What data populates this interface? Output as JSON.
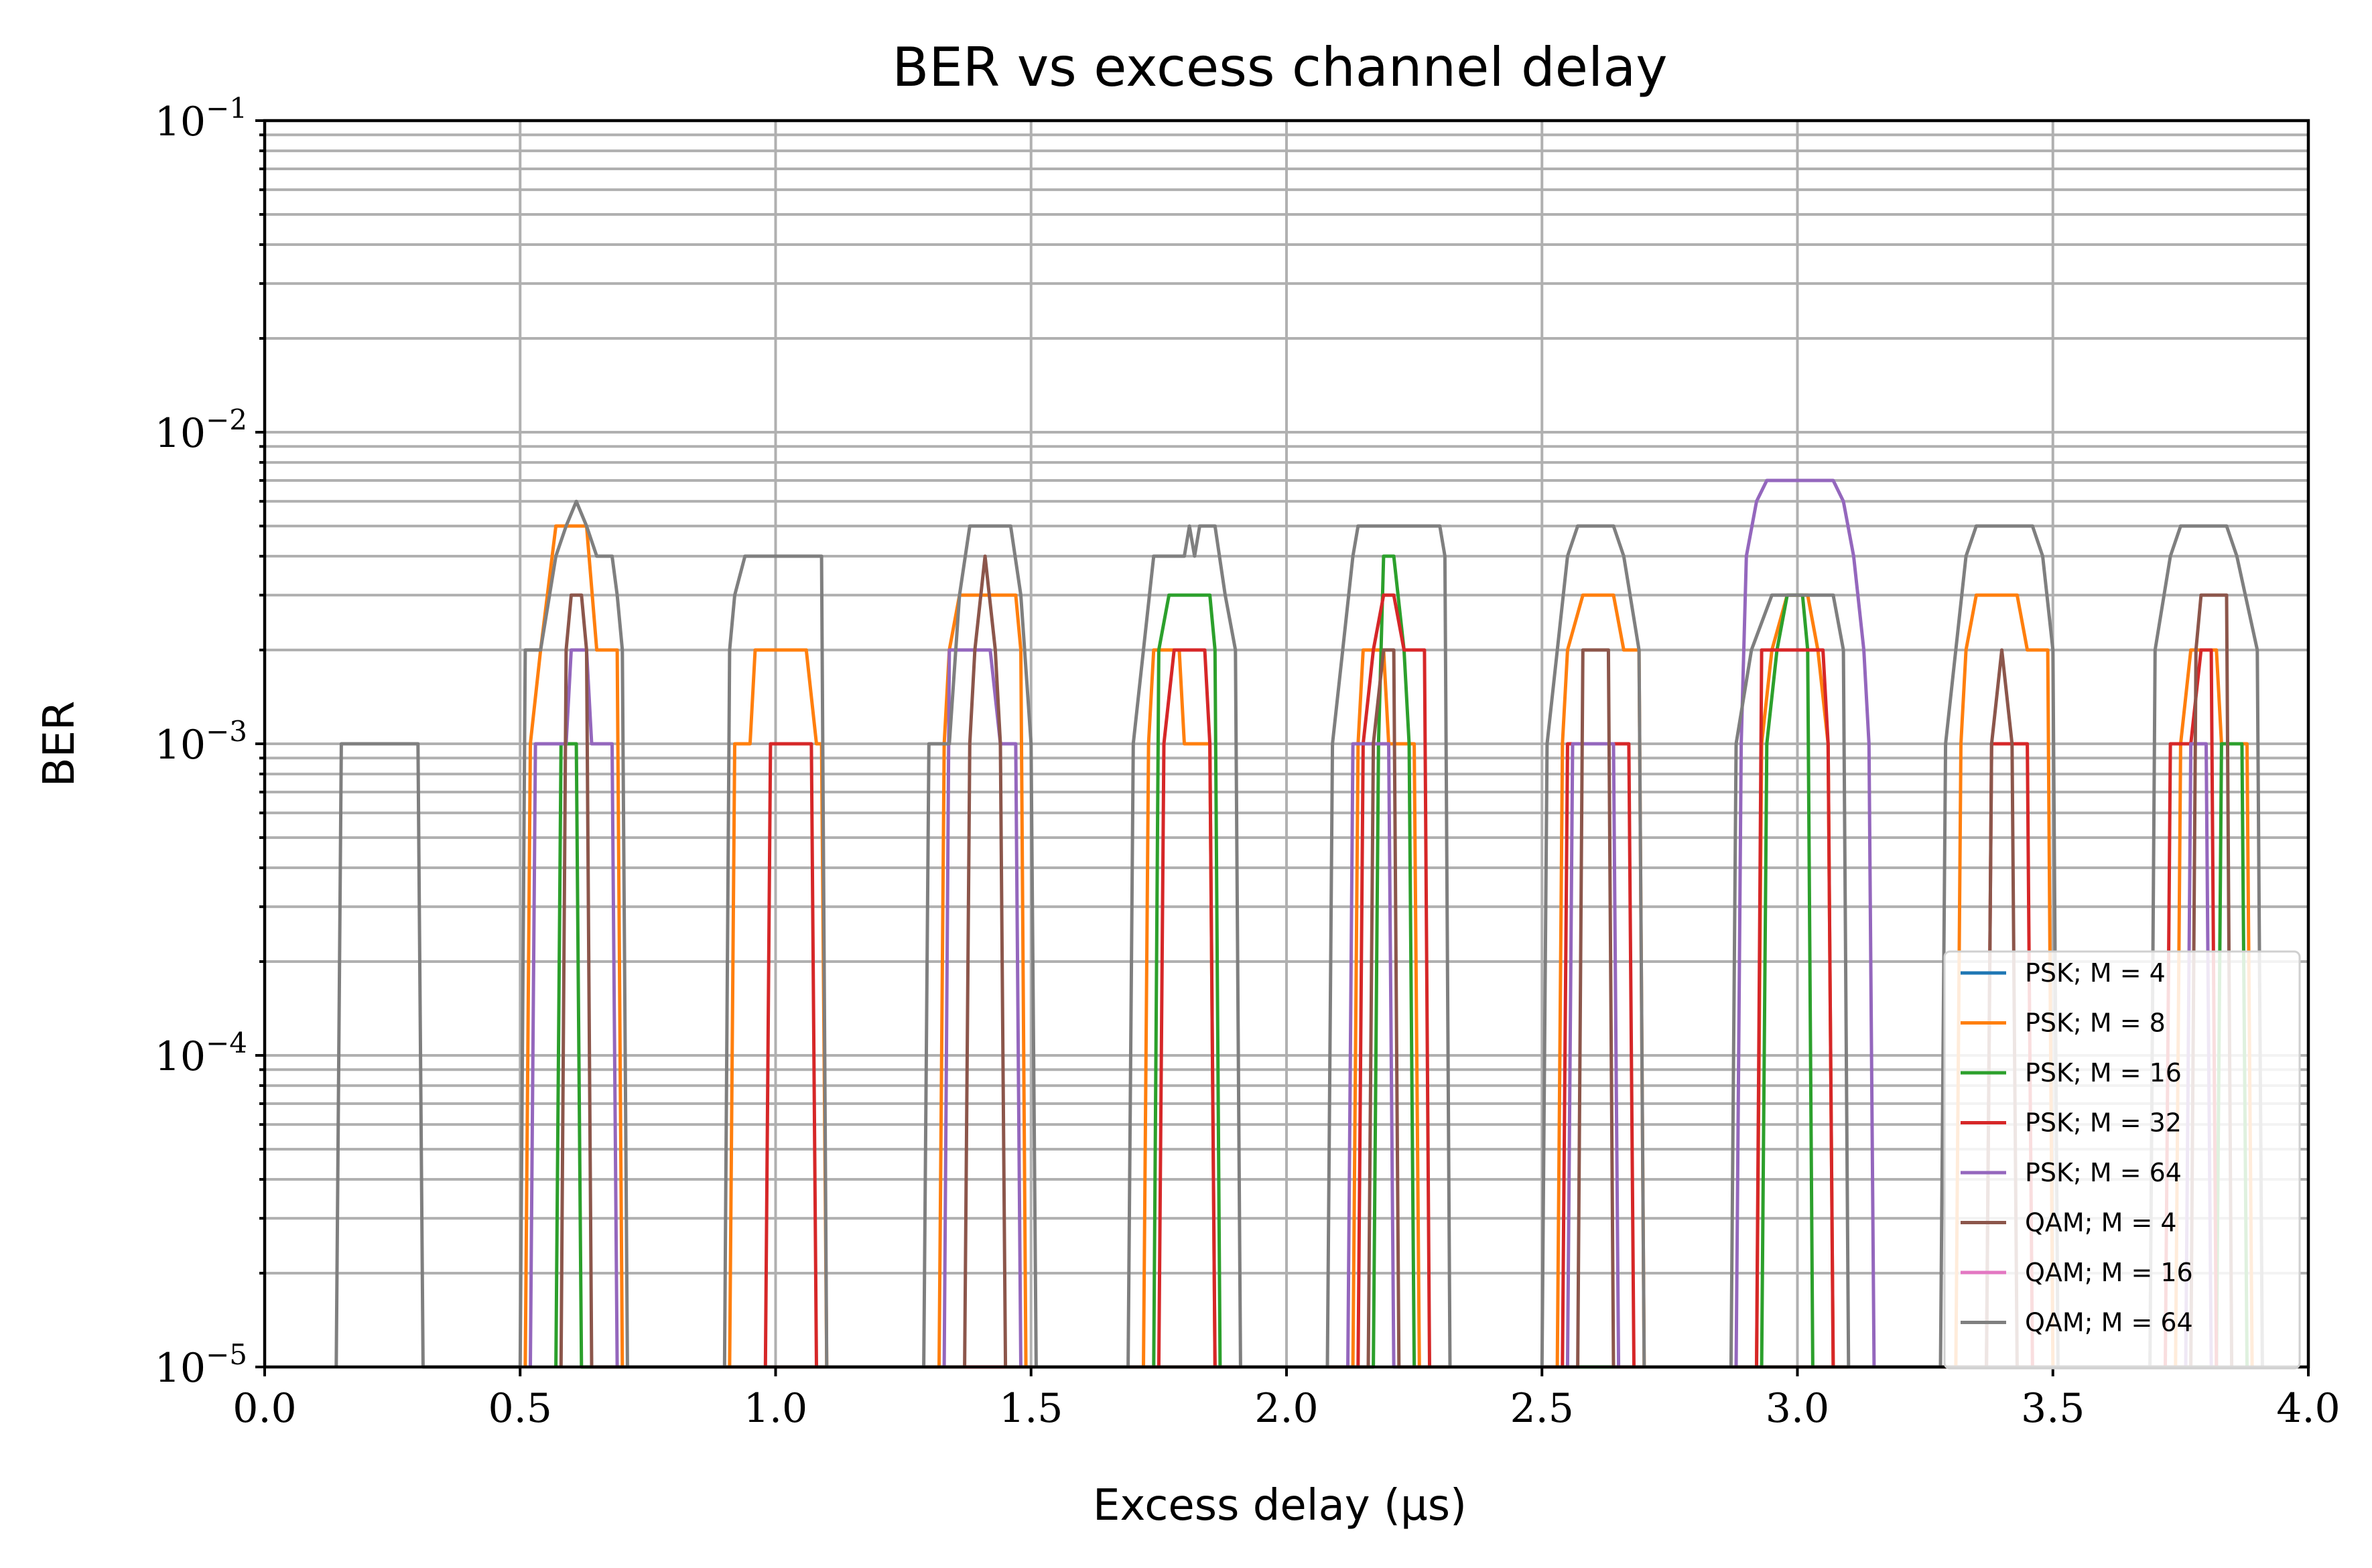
{
  "chart_data": {
    "type": "line",
    "title": "BER vs excess channel delay",
    "xlabel": "Excess delay (μs)",
    "ylabel": "BER",
    "xlim": [
      0,
      4
    ],
    "ylim": [
      1e-05,
      0.1
    ],
    "yscale": "log",
    "grid": "major and minor",
    "legend_position": "bottom-right",
    "x_ticks": [
      "0.0",
      "0.5",
      "1.0",
      "1.5",
      "2.0",
      "2.5",
      "3.0",
      "3.5",
      "4.0"
    ],
    "y_ticks": [
      {
        "base": "10",
        "exp": "−5",
        "value": 1e-05
      },
      {
        "base": "10",
        "exp": "−4",
        "value": 0.0001
      },
      {
        "base": "10",
        "exp": "−3",
        "value": 0.001
      },
      {
        "base": "10",
        "exp": "−2",
        "value": 0.01
      },
      {
        "base": "10",
        "exp": "−1",
        "value": 0.1
      }
    ],
    "series": [
      {
        "name": "PSK; M = 4",
        "color": "#1f77b4",
        "points": []
      },
      {
        "name": "PSK; M = 8",
        "color": "#ff7f0e",
        "points": [
          [
            0.51,
            1e-05
          ],
          [
            0.52,
            0.001
          ],
          [
            0.54,
            0.002
          ],
          [
            0.57,
            0.005
          ],
          [
            0.63,
            0.005
          ],
          [
            0.65,
            0.002
          ],
          [
            0.69,
            0.002
          ],
          [
            0.7,
            1e-05
          ],
          [
            0.91,
            1e-05
          ],
          [
            0.92,
            0.001
          ],
          [
            0.95,
            0.001
          ],
          [
            0.96,
            0.002
          ],
          [
            1.06,
            0.002
          ],
          [
            1.08,
            0.001
          ],
          [
            1.09,
            0.001
          ],
          [
            1.1,
            1e-05
          ],
          [
            1.32,
            1e-05
          ],
          [
            1.33,
            0.001
          ],
          [
            1.34,
            0.002
          ],
          [
            1.36,
            0.003
          ],
          [
            1.47,
            0.003
          ],
          [
            1.48,
            0.002
          ],
          [
            1.49,
            1e-05
          ],
          [
            1.72,
            1e-05
          ],
          [
            1.73,
            0.001
          ],
          [
            1.74,
            0.002
          ],
          [
            1.79,
            0.002
          ],
          [
            1.8,
            0.001
          ],
          [
            1.85,
            0.001
          ],
          [
            1.86,
            1e-05
          ],
          [
            2.13,
            1e-05
          ],
          [
            2.14,
            0.001
          ],
          [
            2.15,
            0.002
          ],
          [
            2.19,
            0.002
          ],
          [
            2.2,
            0.001
          ],
          [
            2.25,
            0.001
          ],
          [
            2.26,
            1e-05
          ],
          [
            2.53,
            1e-05
          ],
          [
            2.54,
            0.001
          ],
          [
            2.55,
            0.002
          ],
          [
            2.58,
            0.003
          ],
          [
            2.64,
            0.003
          ],
          [
            2.66,
            0.002
          ],
          [
            2.69,
            0.002
          ],
          [
            2.7,
            1e-05
          ],
          [
            2.92,
            1e-05
          ],
          [
            2.93,
            0.001
          ],
          [
            2.95,
            0.002
          ],
          [
            2.98,
            0.003
          ],
          [
            3.02,
            0.003
          ],
          [
            3.04,
            0.002
          ],
          [
            3.06,
            0.001
          ],
          [
            3.07,
            1e-05
          ],
          [
            3.31,
            1e-05
          ],
          [
            3.32,
            0.001
          ],
          [
            3.33,
            0.002
          ],
          [
            3.35,
            0.003
          ],
          [
            3.43,
            0.003
          ],
          [
            3.45,
            0.002
          ],
          [
            3.49,
            0.002
          ],
          [
            3.5,
            1e-05
          ],
          [
            3.74,
            1e-05
          ],
          [
            3.75,
            0.001
          ],
          [
            3.77,
            0.002
          ],
          [
            3.82,
            0.002
          ],
          [
            3.83,
            0.001
          ],
          [
            3.88,
            0.001
          ],
          [
            3.89,
            1e-05
          ]
        ]
      },
      {
        "name": "PSK; M = 16",
        "color": "#2ca02c",
        "points": [
          [
            0.57,
            1e-05
          ],
          [
            0.58,
            0.001
          ],
          [
            0.61,
            0.001
          ],
          [
            0.62,
            1e-05
          ],
          [
            1.74,
            1e-05
          ],
          [
            1.75,
            0.002
          ],
          [
            1.77,
            0.003
          ],
          [
            1.85,
            0.003
          ],
          [
            1.86,
            0.002
          ],
          [
            1.87,
            1e-05
          ],
          [
            2.17,
            1e-05
          ],
          [
            2.18,
            0.001
          ],
          [
            2.19,
            0.004
          ],
          [
            2.21,
            0.004
          ],
          [
            2.23,
            0.002
          ],
          [
            2.24,
            0.001
          ],
          [
            2.25,
            1e-05
          ],
          [
            2.93,
            1e-05
          ],
          [
            2.94,
            0.001
          ],
          [
            2.96,
            0.002
          ],
          [
            2.98,
            0.003
          ],
          [
            3.01,
            0.003
          ],
          [
            3.02,
            0.002
          ],
          [
            3.03,
            1e-05
          ],
          [
            3.82,
            1e-05
          ],
          [
            3.83,
            0.001
          ],
          [
            3.87,
            0.001
          ],
          [
            3.88,
            1e-05
          ]
        ]
      },
      {
        "name": "PSK; M = 32",
        "color": "#d62728",
        "points": [
          [
            0.98,
            1e-05
          ],
          [
            0.99,
            0.001
          ],
          [
            1.07,
            0.001
          ],
          [
            1.08,
            1e-05
          ],
          [
            1.75,
            1e-05
          ],
          [
            1.76,
            0.001
          ],
          [
            1.78,
            0.002
          ],
          [
            1.84,
            0.002
          ],
          [
            1.85,
            0.001
          ],
          [
            1.86,
            1e-05
          ],
          [
            2.14,
            1e-05
          ],
          [
            2.15,
            0.001
          ],
          [
            2.17,
            0.002
          ],
          [
            2.19,
            0.003
          ],
          [
            2.21,
            0.003
          ],
          [
            2.23,
            0.002
          ],
          [
            2.27,
            0.002
          ],
          [
            2.28,
            1e-05
          ],
          [
            2.54,
            1e-05
          ],
          [
            2.55,
            0.001
          ],
          [
            2.67,
            0.001
          ],
          [
            2.68,
            1e-05
          ],
          [
            2.92,
            1e-05
          ],
          [
            2.93,
            0.002
          ],
          [
            3.05,
            0.002
          ],
          [
            3.06,
            0.001
          ],
          [
            3.07,
            1e-05
          ],
          [
            3.37,
            1e-05
          ],
          [
            3.38,
            0.001
          ],
          [
            3.45,
            0.001
          ],
          [
            3.46,
            1e-05
          ],
          [
            3.72,
            1e-05
          ],
          [
            3.73,
            0.001
          ],
          [
            3.77,
            0.001
          ],
          [
            3.79,
            0.002
          ],
          [
            3.81,
            0.002
          ],
          [
            3.82,
            1e-05
          ]
        ]
      },
      {
        "name": "PSK; M = 64",
        "color": "#9467bd",
        "points": [
          [
            0.52,
            1e-05
          ],
          [
            0.53,
            0.001
          ],
          [
            0.59,
            0.001
          ],
          [
            0.6,
            0.002
          ],
          [
            0.63,
            0.002
          ],
          [
            0.64,
            0.001
          ],
          [
            0.68,
            0.001
          ],
          [
            0.69,
            1e-05
          ],
          [
            1.33,
            1e-05
          ],
          [
            1.34,
            0.002
          ],
          [
            1.37,
            0.002
          ],
          [
            1.42,
            0.002
          ],
          [
            1.44,
            0.001
          ],
          [
            1.47,
            0.001
          ],
          [
            1.48,
            1e-05
          ],
          [
            2.12,
            1e-05
          ],
          [
            2.13,
            0.001
          ],
          [
            2.2,
            0.001
          ],
          [
            2.21,
            1e-05
          ],
          [
            2.55,
            1e-05
          ],
          [
            2.56,
            0.001
          ],
          [
            2.64,
            0.001
          ],
          [
            2.65,
            1e-05
          ],
          [
            2.88,
            1e-05
          ],
          [
            2.89,
            0.001
          ],
          [
            2.9,
            0.004
          ],
          [
            2.92,
            0.006
          ],
          [
            2.94,
            0.007
          ],
          [
            3.07,
            0.007
          ],
          [
            3.09,
            0.006
          ],
          [
            3.11,
            0.004
          ],
          [
            3.13,
            0.002
          ],
          [
            3.14,
            0.001
          ],
          [
            3.15,
            1e-05
          ],
          [
            3.76,
            1e-05
          ],
          [
            3.77,
            0.001
          ],
          [
            3.8,
            0.001
          ],
          [
            3.81,
            1e-05
          ]
        ]
      },
      {
        "name": "QAM; M = 4",
        "color": "#8c564b",
        "points": [
          [
            0.58,
            1e-05
          ],
          [
            0.59,
            0.002
          ],
          [
            0.6,
            0.003
          ],
          [
            0.62,
            0.003
          ],
          [
            0.63,
            0.002
          ],
          [
            0.64,
            1e-05
          ],
          [
            1.37,
            1e-05
          ],
          [
            1.38,
            0.001
          ],
          [
            1.39,
            0.002
          ],
          [
            1.41,
            0.004
          ],
          [
            1.43,
            0.002
          ],
          [
            1.44,
            0.001
          ],
          [
            1.45,
            1e-05
          ],
          [
            2.16,
            1e-05
          ],
          [
            2.17,
            0.001
          ],
          [
            2.19,
            0.002
          ],
          [
            2.21,
            0.002
          ],
          [
            2.22,
            1e-05
          ],
          [
            2.57,
            1e-05
          ],
          [
            2.58,
            0.002
          ],
          [
            2.63,
            0.002
          ],
          [
            2.64,
            1e-05
          ],
          [
            3.37,
            1e-05
          ],
          [
            3.38,
            0.001
          ],
          [
            3.4,
            0.002
          ],
          [
            3.42,
            0.001
          ],
          [
            3.43,
            1e-05
          ],
          [
            3.77,
            1e-05
          ],
          [
            3.78,
            0.002
          ],
          [
            3.79,
            0.003
          ],
          [
            3.84,
            0.003
          ],
          [
            3.85,
            1e-05
          ]
        ]
      },
      {
        "name": "QAM; M = 16",
        "color": "#e377c2",
        "points": []
      },
      {
        "name": "QAM; M = 64",
        "color": "#7f7f7f",
        "points": [
          [
            0.14,
            1e-05
          ],
          [
            0.15,
            0.001
          ],
          [
            0.3,
            0.001
          ],
          [
            0.31,
            1e-05
          ],
          [
            0.5,
            1e-05
          ],
          [
            0.51,
            0.002
          ],
          [
            0.54,
            0.002
          ],
          [
            0.57,
            0.004
          ],
          [
            0.59,
            0.005
          ],
          [
            0.61,
            0.006
          ],
          [
            0.63,
            0.005
          ],
          [
            0.65,
            0.004
          ],
          [
            0.68,
            0.004
          ],
          [
            0.69,
            0.003
          ],
          [
            0.7,
            0.002
          ],
          [
            0.71,
            1e-05
          ],
          [
            0.9,
            1e-05
          ],
          [
            0.91,
            0.002
          ],
          [
            0.92,
            0.003
          ],
          [
            0.94,
            0.004
          ],
          [
            1.09,
            0.004
          ],
          [
            1.1,
            1e-05
          ],
          [
            1.29,
            1e-05
          ],
          [
            1.3,
            0.001
          ],
          [
            1.34,
            0.001
          ],
          [
            1.36,
            0.003
          ],
          [
            1.38,
            0.005
          ],
          [
            1.46,
            0.005
          ],
          [
            1.48,
            0.003
          ],
          [
            1.5,
            0.001
          ],
          [
            1.51,
            1e-05
          ],
          [
            1.69,
            1e-05
          ],
          [
            1.7,
            0.001
          ],
          [
            1.72,
            0.002
          ],
          [
            1.74,
            0.004
          ],
          [
            1.8,
            0.004
          ],
          [
            1.81,
            0.005
          ],
          [
            1.82,
            0.004
          ],
          [
            1.83,
            0.005
          ],
          [
            1.86,
            0.005
          ],
          [
            1.88,
            0.003
          ],
          [
            1.9,
            0.002
          ],
          [
            1.91,
            1e-05
          ],
          [
            2.08,
            1e-05
          ],
          [
            2.09,
            0.001
          ],
          [
            2.11,
            0.002
          ],
          [
            2.13,
            0.004
          ],
          [
            2.14,
            0.005
          ],
          [
            2.3,
            0.005
          ],
          [
            2.31,
            0.004
          ],
          [
            2.32,
            1e-05
          ],
          [
            2.5,
            1e-05
          ],
          [
            2.51,
            0.001
          ],
          [
            2.55,
            0.004
          ],
          [
            2.57,
            0.005
          ],
          [
            2.64,
            0.005
          ],
          [
            2.66,
            0.004
          ],
          [
            2.69,
            0.002
          ],
          [
            2.7,
            1e-05
          ],
          [
            2.87,
            1e-05
          ],
          [
            2.88,
            0.001
          ],
          [
            2.91,
            0.002
          ],
          [
            2.95,
            0.003
          ],
          [
            3.07,
            0.003
          ],
          [
            3.09,
            0.002
          ],
          [
            3.1,
            1e-05
          ],
          [
            3.28,
            1e-05
          ],
          [
            3.29,
            0.001
          ],
          [
            3.33,
            0.004
          ],
          [
            3.35,
            0.005
          ],
          [
            3.46,
            0.005
          ],
          [
            3.48,
            0.004
          ],
          [
            3.5,
            0.002
          ],
          [
            3.51,
            1e-05
          ],
          [
            3.69,
            1e-05
          ],
          [
            3.7,
            0.002
          ],
          [
            3.73,
            0.004
          ],
          [
            3.75,
            0.005
          ],
          [
            3.84,
            0.005
          ],
          [
            3.86,
            0.004
          ],
          [
            3.9,
            0.002
          ],
          [
            3.91,
            1e-05
          ]
        ]
      }
    ]
  }
}
